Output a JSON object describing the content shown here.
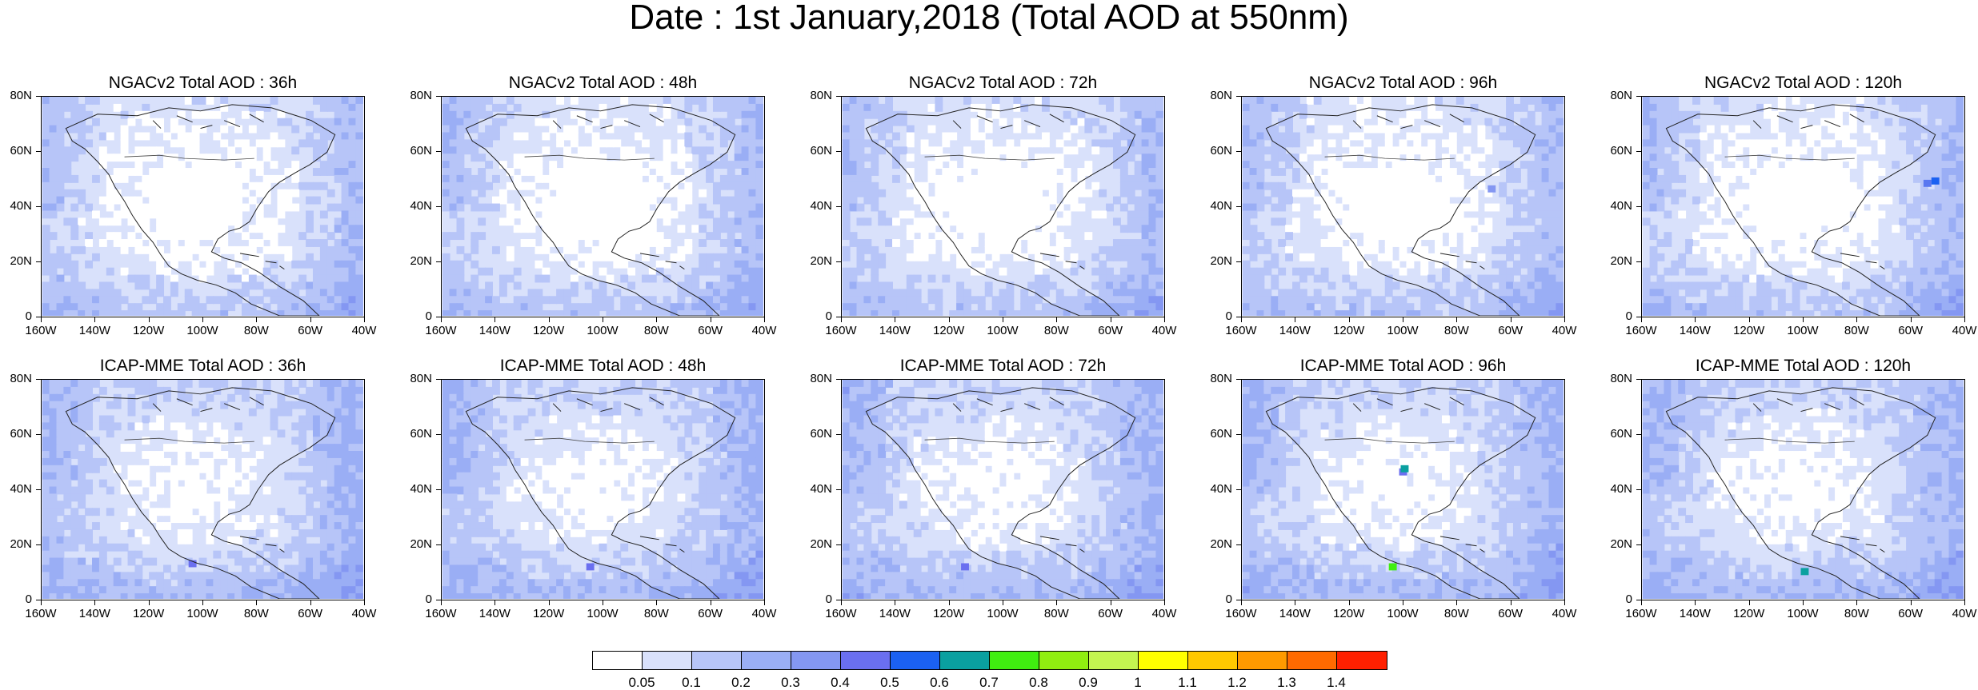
{
  "title": "Date : 1st January,2018 (Total AOD at 550nm)",
  "panels": [
    {
      "title": "NGACv2 Total AOD : 36h"
    },
    {
      "title": "NGACv2 Total AOD : 48h"
    },
    {
      "title": "NGACv2 Total AOD : 72h"
    },
    {
      "title": "NGACv2 Total AOD : 96h"
    },
    {
      "title": "NGACv2 Total AOD : 120h"
    },
    {
      "title": "ICAP-MME Total AOD : 36h"
    },
    {
      "title": "ICAP-MME Total AOD : 48h"
    },
    {
      "title": "ICAP-MME Total AOD : 72h"
    },
    {
      "title": "ICAP-MME Total AOD : 96h"
    },
    {
      "title": "ICAP-MME Total AOD : 120h"
    }
  ],
  "y_ticks": [
    "80N",
    "60N",
    "40N",
    "20N",
    "0"
  ],
  "x_ticks": [
    "160W",
    "140W",
    "120W",
    "100W",
    "80W",
    "60W",
    "40W"
  ],
  "colorbar": {
    "colors": [
      "#ffffff",
      "#d9e1fb",
      "#b7c5f8",
      "#9aaef5",
      "#8497f2",
      "#6a6ff0",
      "#1b61f2",
      "#0aa0a0",
      "#40ee10",
      "#90ee10",
      "#c4f550",
      "#ffff00",
      "#ffc800",
      "#ff9a00",
      "#ff6a00",
      "#ff2000"
    ],
    "labels": [
      "0.05",
      "0.1",
      "0.2",
      "0.3",
      "0.4",
      "0.5",
      "0.6",
      "0.7",
      "0.8",
      "0.9",
      "1",
      "1.1",
      "1.2",
      "1.3",
      "1.4"
    ]
  }
}
